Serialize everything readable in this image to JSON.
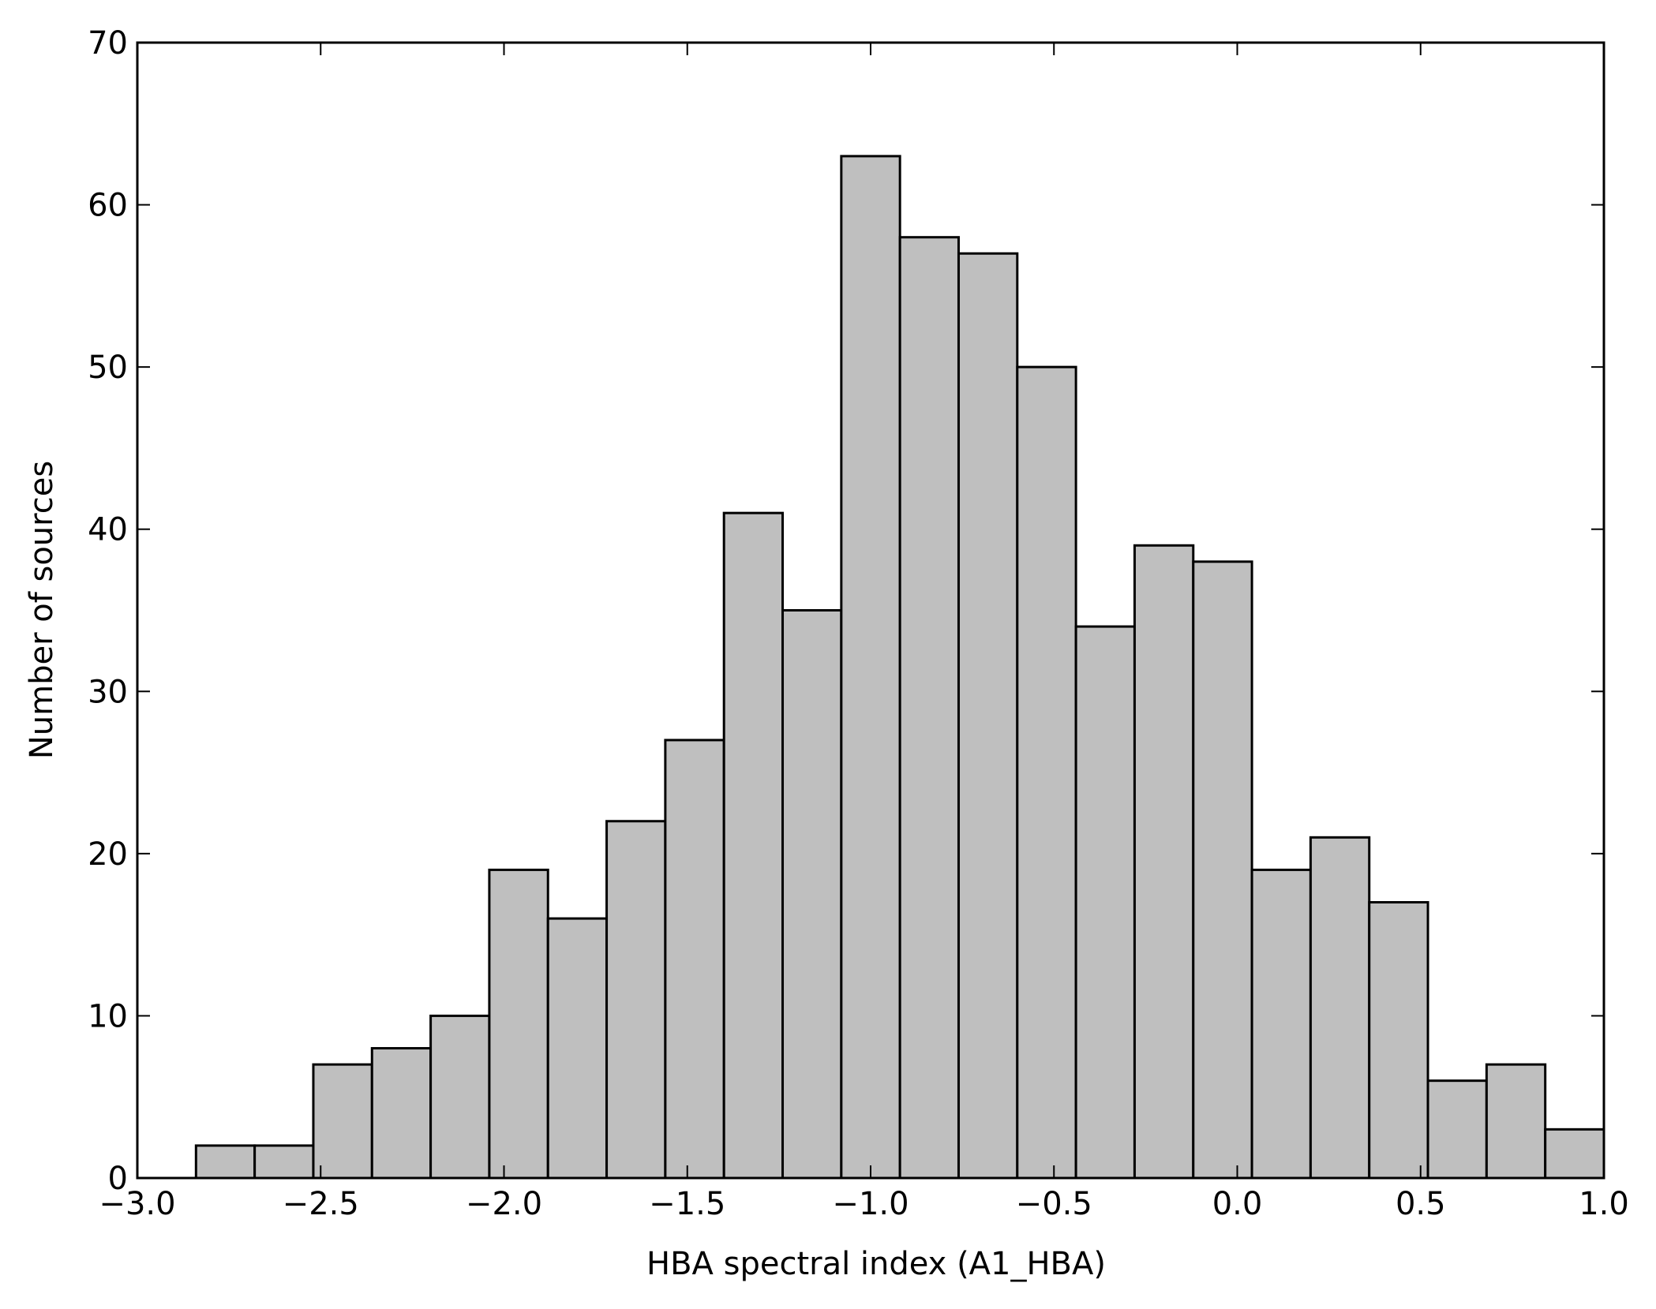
{
  "chart_data": {
    "type": "histogram",
    "x_label": "HBA spectral index (A1_HBA)",
    "y_label": "Number of sources",
    "bins": [
      -3.0,
      -2.84,
      -2.68,
      -2.52,
      -2.36,
      -2.2,
      -2.04,
      -1.88,
      -1.72,
      -1.56,
      -1.4,
      -1.24,
      -1.08,
      -0.92,
      -0.76,
      -0.6,
      -0.44,
      -0.28,
      -0.12,
      0.04,
      0.2,
      0.36,
      0.52,
      0.68,
      0.84,
      1.0
    ],
    "values": [
      0,
      2,
      2,
      7,
      8,
      10,
      19,
      16,
      22,
      27,
      41,
      35,
      63,
      58,
      57,
      50,
      34,
      39,
      38,
      19,
      21,
      17,
      6,
      7,
      3
    ],
    "color": "#bfbfbf",
    "xlim": [
      -3.0,
      1.0
    ],
    "xticks": [
      {
        "value": -3.0,
        "label": "−3.0"
      },
      {
        "value": -2.5,
        "label": "−2.5"
      },
      {
        "value": -2.0,
        "label": "−2.0"
      },
      {
        "value": -1.5,
        "label": "−1.5"
      },
      {
        "value": -1.0,
        "label": "−1.0"
      },
      {
        "value": -0.5,
        "label": "−0.5"
      },
      {
        "value": 0.0,
        "label": "0.0"
      },
      {
        "value": 0.5,
        "label": "0.5"
      },
      {
        "value": 1.0,
        "label": "1.0"
      }
    ],
    "ylim": [
      0,
      70
    ],
    "yticks": [
      0,
      10,
      20,
      30,
      40,
      50,
      60,
      70
    ],
    "grid": false
  }
}
